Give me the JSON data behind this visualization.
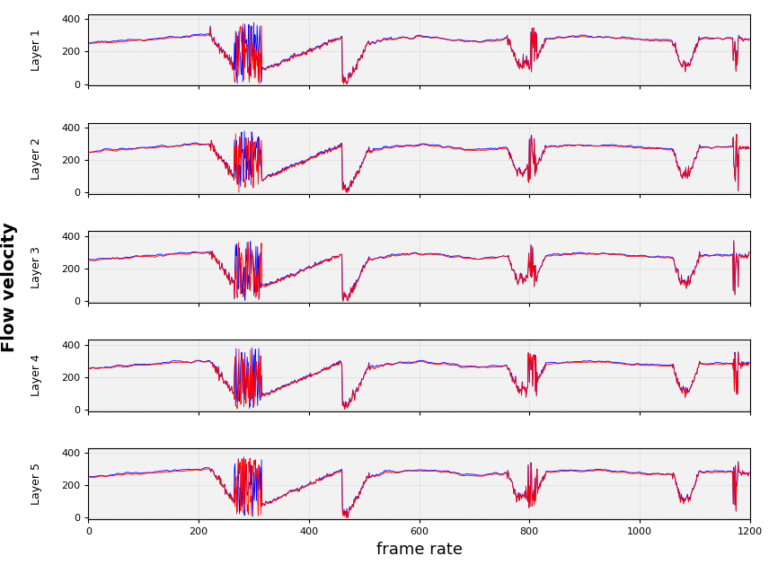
{
  "n_layers": 5,
  "n_frames": 1200,
  "xlabel": "frame rate",
  "ylabel": "Flow velocity",
  "layer_labels": [
    "Layer 1",
    "Layer 2",
    "Layer 3",
    "Layer 4",
    "Layer 5"
  ],
  "yticks": [
    0,
    200,
    400
  ],
  "ylim": [
    -10,
    430
  ],
  "xlim": [
    0,
    1200
  ],
  "xticks": [
    0,
    200,
    400,
    600,
    800,
    1000,
    1200
  ],
  "color_red": "#FF0000",
  "color_blue": "#0000FF",
  "linewidth_main": 0.6,
  "linewidth_spike": 0.8,
  "background_color": "#FFFFFF",
  "plot_bg": "#F2F2F2",
  "grid_color": "#BBBBBB",
  "ylabel_fontsize": 14,
  "label_fontsize": 9,
  "tick_fontsize": 8,
  "xlabel_fontsize": 13
}
